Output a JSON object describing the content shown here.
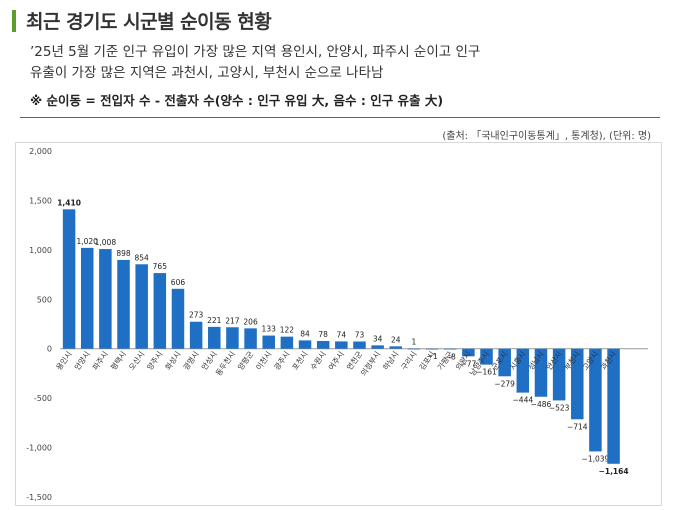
{
  "header": {
    "title": "최근 경기도 시군별 순이동 현황",
    "line1": "’25년 5월 기준 인구 유입이 가장 많은 지역 용인시, 안양시, 파주시 순이고 인구",
    "line2": "유출이 가장 많은 지역은 과천시, 고양시, 부천시 순으로 나타남",
    "note": "※ 순이동 = 전입자 수 - 전출자 수(양수 : 인구 유입 大, 음수 : 인구 유출 大)",
    "source": "(출처: 「국내인구이동통계」, 통계청), (단위: 명)"
  },
  "colors": {
    "bar": "#1f6fc5",
    "accent": "#5a9e2f",
    "axis": "#999999"
  },
  "chart_data": {
    "type": "bar",
    "title": "",
    "xlabel": "",
    "ylabel": "",
    "ylim": [
      -1500,
      2000
    ],
    "yticks": [
      2000,
      1500,
      1000,
      500,
      0,
      -500,
      -1000,
      -1500
    ],
    "ytick_labels": [
      "2,000",
      "1,500",
      "1,000",
      "500",
      "0",
      "-500",
      "-1,000",
      "-1,500"
    ],
    "categories": [
      "용인시",
      "안양시",
      "파주시",
      "평택시",
      "오산시",
      "양주시",
      "화성시",
      "광명시",
      "안성시",
      "동두천시",
      "양평군",
      "이천시",
      "광주시",
      "포천시",
      "수원시",
      "여주시",
      "연천군",
      "의정부시",
      "하남시",
      "구리시",
      "김포시",
      "가평군",
      "의왕시",
      "남양주시",
      "군포시",
      "시흥시",
      "성남시",
      "안산시",
      "부천시",
      "고양시",
      "과천시"
    ],
    "values": [
      1410,
      1020,
      1008,
      898,
      854,
      765,
      606,
      273,
      221,
      217,
      206,
      133,
      122,
      84,
      78,
      74,
      73,
      34,
      24,
      1,
      -1,
      -8,
      -77,
      -161,
      -279,
      -444,
      -486,
      -523,
      -714,
      -1039,
      -1164
    ],
    "value_labels": [
      "1,410",
      "1,020",
      "1,008",
      "898",
      "854",
      "765",
      "606",
      "273",
      "221",
      "217",
      "206",
      "133",
      "122",
      "84",
      "78",
      "74",
      "73",
      "34",
      "24",
      "1",
      "−1",
      "−8",
      "−77",
      "−161",
      "−279",
      "−444",
      "−486",
      "−523",
      "−714",
      "−1,039",
      "−1,164"
    ],
    "bold_labels": [
      0,
      30
    ],
    "grid": false
  }
}
